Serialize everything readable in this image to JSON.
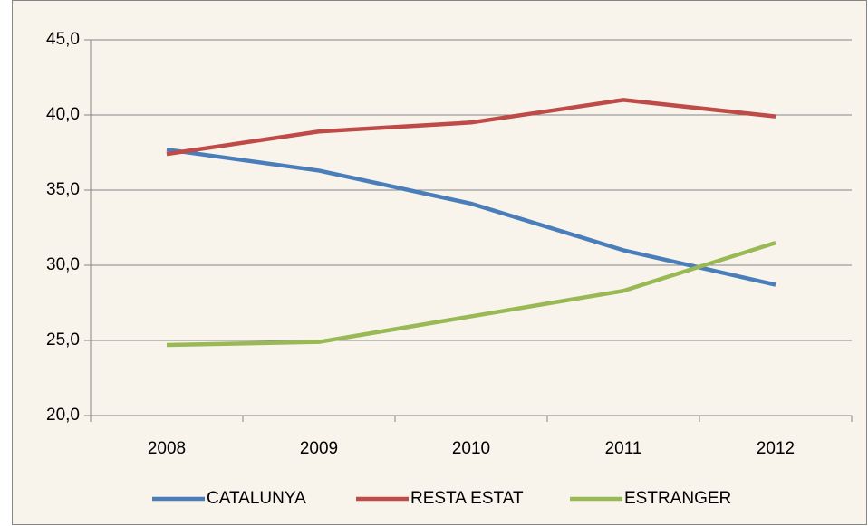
{
  "chart_data": {
    "type": "line",
    "categories": [
      "2008",
      "2009",
      "2010",
      "2011",
      "2012"
    ],
    "series": [
      {
        "name": "CATALUNYA",
        "color": "#4a7ebb",
        "values": [
          37.7,
          36.3,
          34.1,
          31.0,
          28.7
        ]
      },
      {
        "name": "RESTA ESTAT",
        "color": "#be4b48",
        "values": [
          37.4,
          38.9,
          39.5,
          41.0,
          39.9
        ]
      },
      {
        "name": "ESTRANGER",
        "color": "#98b954",
        "values": [
          24.7,
          24.9,
          26.6,
          28.3,
          31.5
        ]
      }
    ],
    "ylim": [
      20,
      45
    ],
    "yticks": [
      {
        "value": 20,
        "label": "20,0"
      },
      {
        "value": 25,
        "label": "25,0"
      },
      {
        "value": 30,
        "label": "30,0"
      },
      {
        "value": 35,
        "label": "35,0"
      },
      {
        "value": 40,
        "label": "40,0"
      },
      {
        "value": 45,
        "label": "45,0"
      }
    ],
    "grid": true,
    "legend": "bottom"
  }
}
